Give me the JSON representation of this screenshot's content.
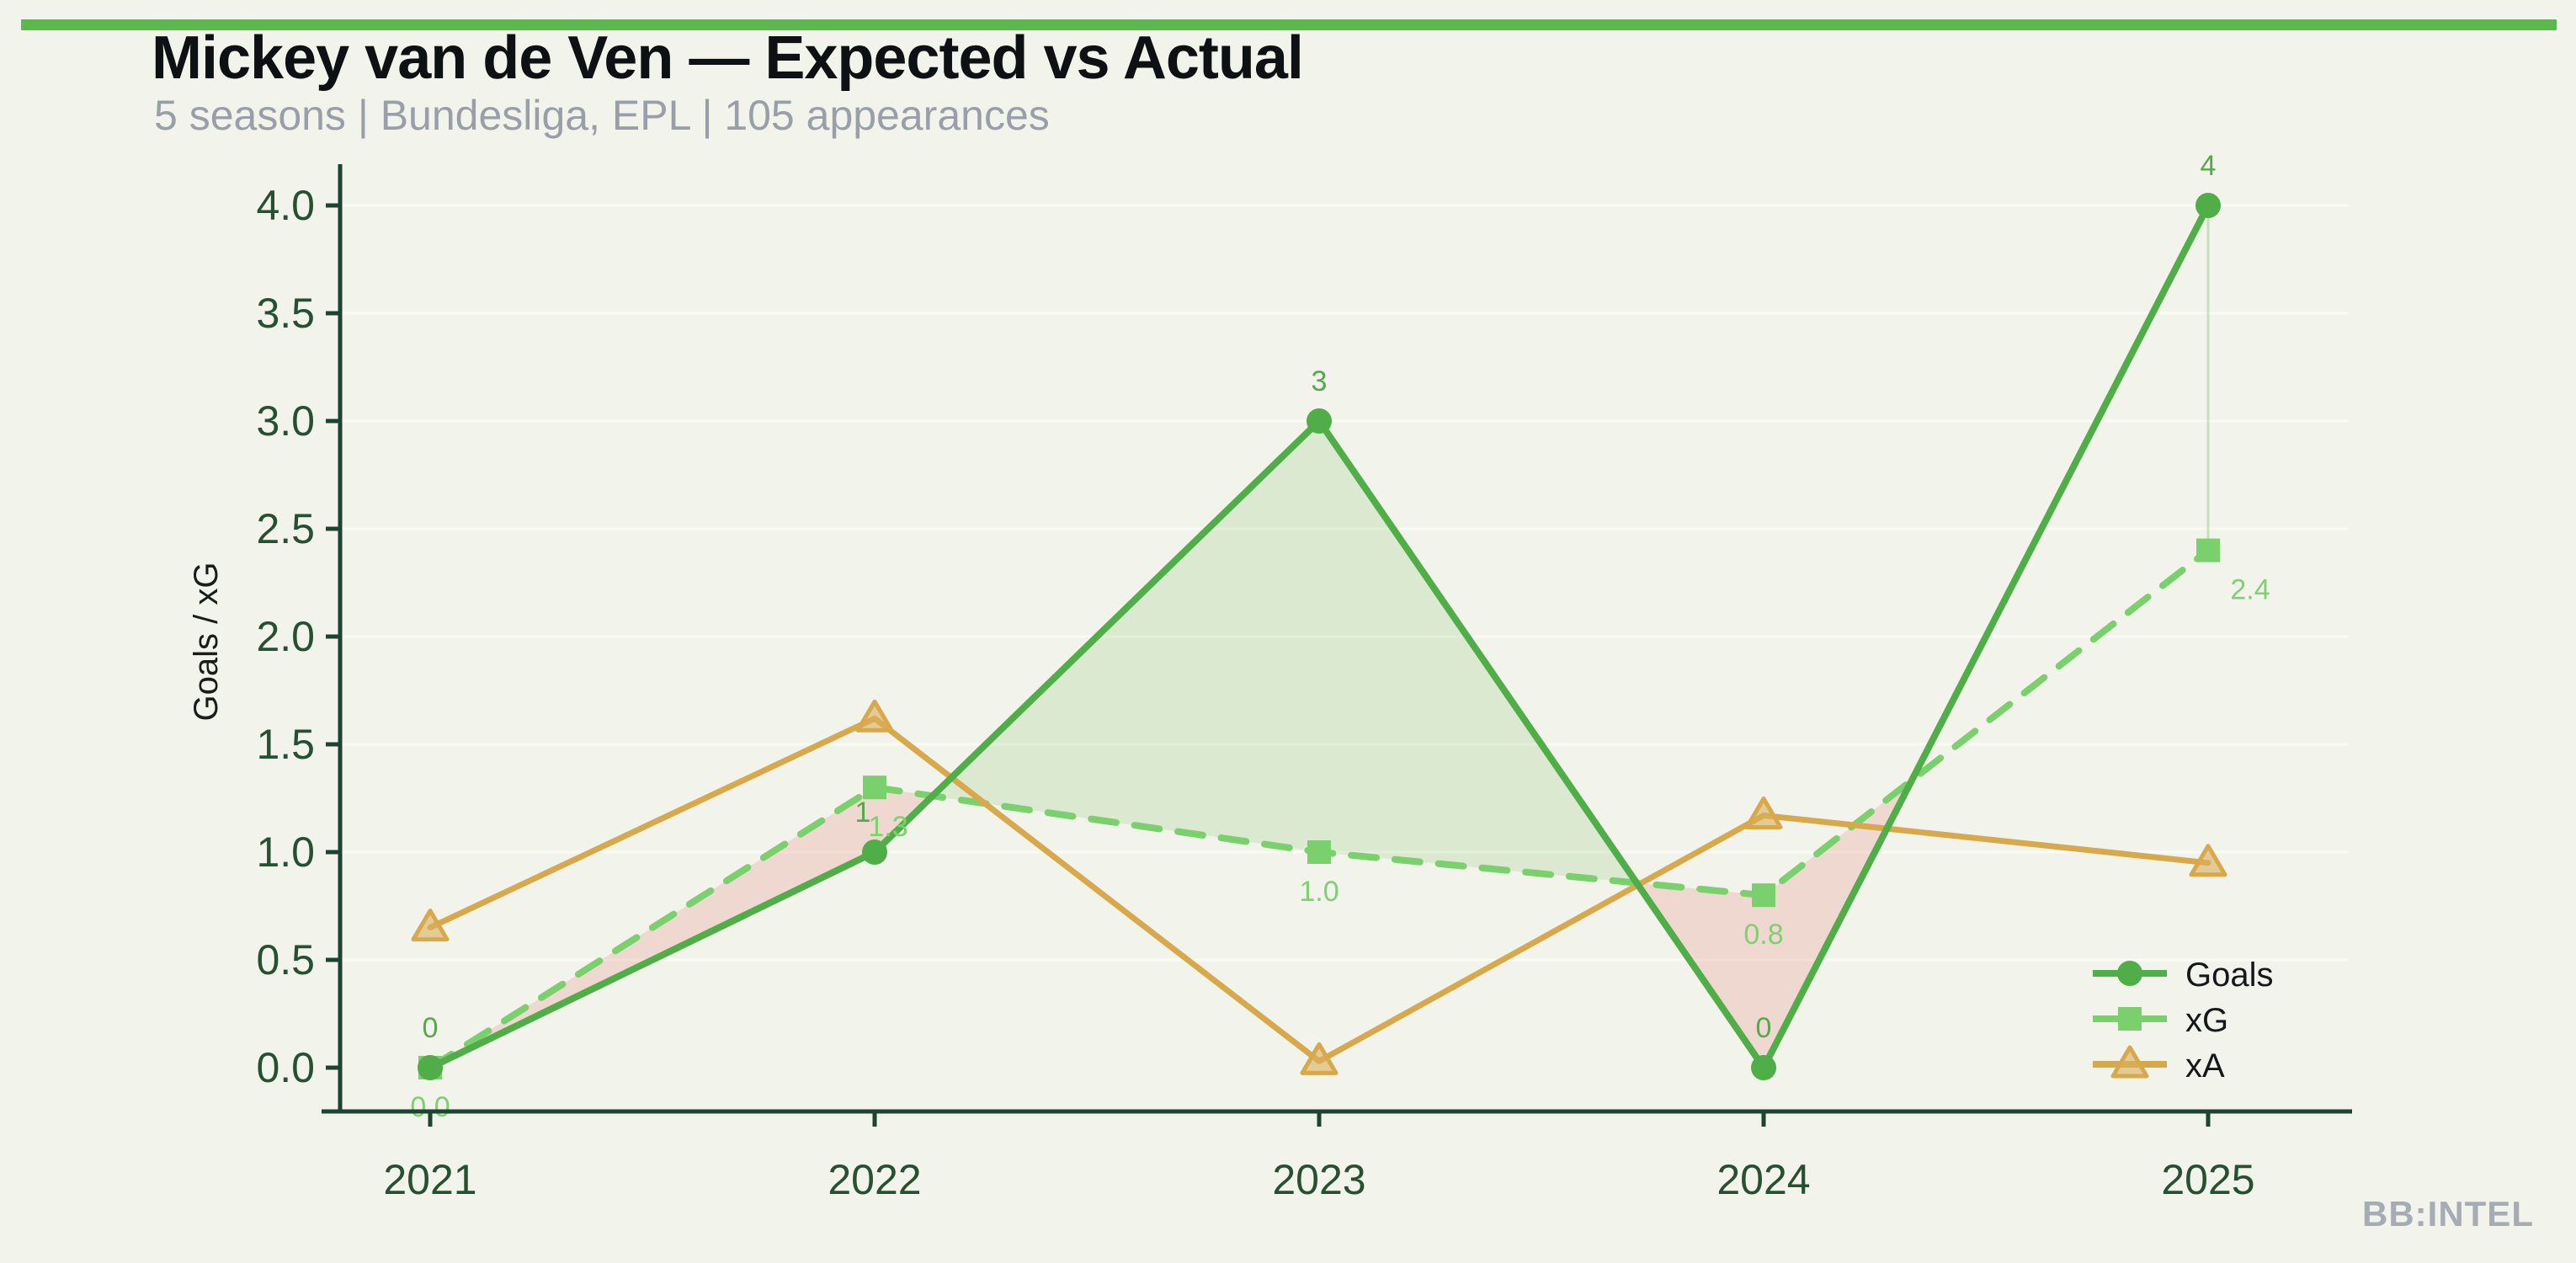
{
  "header": {
    "title": "Mickey van de Ven — Expected vs Actual",
    "subtitle": "5 seasons | Bundesliga, EPL | 105 appearances"
  },
  "branding": {
    "watermark": "BB:INTEL"
  },
  "theme": {
    "background": "#f2f3ea",
    "top_bar": "#5bb84d",
    "axis": "#1d4433",
    "tick_label": "#265031",
    "title_color": "#0e1113",
    "subtitle_color": "#989fa9",
    "watermark_color": "#a6acb5",
    "grid": "#fafbf4",
    "goals": "#4fae47",
    "xg": "#79d06c",
    "xa": "#d7a94c",
    "xa_marker_fill": "rgba(219,176,94,0.6)",
    "goals_label": "#57a84b",
    "xg_label": "#7ed072",
    "fill_green": "rgba(111,191,92,0.18)",
    "fill_pink": "rgba(226,112,100,0.20)",
    "connector": "rgba(111,191,92,0.35)",
    "legend_text": "#14181b",
    "ylabel_color": "#171d18"
  },
  "chart_data": {
    "type": "line",
    "x": [
      2021,
      2022,
      2023,
      2024,
      2025
    ],
    "series": [
      {
        "name": "Goals",
        "values": [
          0,
          1,
          3,
          0,
          4
        ],
        "marker": "circle",
        "style": "solid",
        "labels": [
          "0",
          "1",
          "3",
          "0",
          "4"
        ]
      },
      {
        "name": "xG",
        "values": [
          0.0,
          1.3,
          1.0,
          0.8,
          2.4
        ],
        "marker": "square",
        "style": "dashed",
        "labels": [
          "0.0",
          "1.3",
          "1.0",
          "0.8",
          "2.4"
        ]
      },
      {
        "name": "xA",
        "values": [
          0.65,
          1.62,
          0.03,
          1.17,
          0.95
        ],
        "marker": "triangle",
        "style": "solid",
        "labels": []
      }
    ],
    "xlabel": "",
    "ylabel": "Goals / xG",
    "ylim": [
      -0.2,
      4.35
    ],
    "yticks": [
      0.0,
      0.5,
      1.0,
      1.5,
      2.0,
      2.5,
      3.0,
      3.5,
      4.0
    ],
    "xticks": [
      "2021",
      "2022",
      "2023",
      "2024",
      "2025"
    ],
    "legend": [
      "Goals",
      "xG",
      "xA"
    ],
    "legend_position": "lower right",
    "grid": "faint horizontal lines at 0.5 intervals",
    "fills": "area between Goals and xG: green where Goals > xG, pink where xG > Goals"
  }
}
